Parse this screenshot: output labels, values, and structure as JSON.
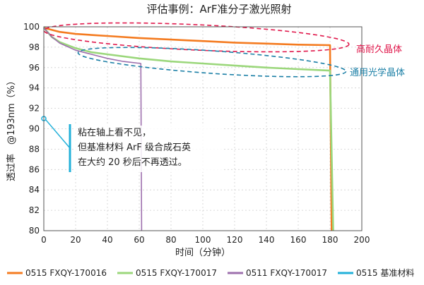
{
  "chart_data": {
    "type": "line",
    "title": "评估事例：ArF准分子激光照射",
    "xlabel": "时间（分钟）",
    "ylabel": "透过率　@193nm（%）",
    "xlim": [
      0,
      200
    ],
    "ylim": [
      80,
      100
    ],
    "x_ticks": [
      0,
      20,
      40,
      60,
      80,
      100,
      120,
      140,
      160,
      180,
      200
    ],
    "y_ticks": [
      80,
      82,
      84,
      86,
      88,
      90,
      92,
      94,
      96,
      98,
      100
    ],
    "grid": true,
    "legend_position": "bottom",
    "series": [
      {
        "name": "0515 FXQY-170016",
        "color": "#f47b20",
        "points": [
          [
            0,
            99.9
          ],
          [
            10,
            99.5
          ],
          [
            20,
            99.3
          ],
          [
            40,
            99.1
          ],
          [
            60,
            98.9
          ],
          [
            80,
            98.75
          ],
          [
            100,
            98.6
          ],
          [
            120,
            98.45
          ],
          [
            140,
            98.35
          ],
          [
            160,
            98.25
          ],
          [
            180,
            98.2
          ],
          [
            181,
            80
          ]
        ]
      },
      {
        "name": "0515 FXQY-170017",
        "color": "#9bd77b",
        "points": [
          [
            0,
            99.9
          ],
          [
            5,
            99.0
          ],
          [
            10,
            98.5
          ],
          [
            20,
            97.9
          ],
          [
            30,
            97.5
          ],
          [
            40,
            97.3
          ],
          [
            60,
            96.9
          ],
          [
            80,
            96.6
          ],
          [
            100,
            96.4
          ],
          [
            120,
            96.2
          ],
          [
            140,
            96.0
          ],
          [
            160,
            95.85
          ],
          [
            180,
            95.7
          ],
          [
            182,
            80
          ]
        ]
      },
      {
        "name": "0511 FXQY-170017",
        "color": "#9d6fad",
        "points": [
          [
            0,
            99.9
          ],
          [
            5,
            99.0
          ],
          [
            10,
            98.4
          ],
          [
            20,
            97.7
          ],
          [
            30,
            97.3
          ],
          [
            40,
            96.9
          ],
          [
            50,
            96.6
          ],
          [
            61,
            96.4
          ],
          [
            61.5,
            80
          ]
        ]
      },
      {
        "name": "0515 基准材料",
        "color": "#22b0d9",
        "points": [
          [
            0,
            91
          ],
          [
            0.3,
            80
          ]
        ]
      }
    ],
    "annotations": {
      "high_durability": {
        "text": "高耐久晶体",
        "color": "#e0194c"
      },
      "general": {
        "text": "通用光学晶体",
        "color": "#1b7fa6"
      },
      "reference_note": {
        "lines": [
          "粘在轴上看不见，",
          "但基准材料 ArF 级合成石英",
          "在大约 20 秒后不再透过。"
        ],
        "color": "#22b0d9"
      }
    }
  }
}
